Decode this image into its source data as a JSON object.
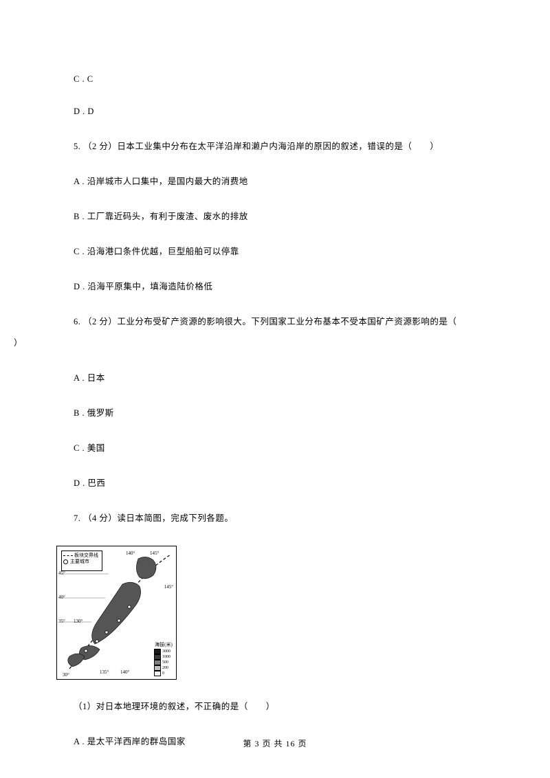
{
  "lines": {
    "cc": "C . C",
    "dd": "D . D",
    "q5": "5.  （2 分）日本工业集中分布在太平洋沿岸和濑户内海沿岸的原因的叙述，错误的是（　　）",
    "q5a": "A . 沿岸城市人口集中，是国内最大的消费地",
    "q5b": "B . 工厂靠近码头，有利于废渣、废水的排放",
    "q5c": "C . 沿海港口条件优越，巨型船舶可以停靠",
    "q5d": "D . 沿海平原集中，填海造陆价格低",
    "q6": "6.   （2 分）工业分布受矿产资源的影响很大。下列国家工业分布基本不受本国矿产资源影响的是（",
    "q6_close": "）",
    "q6a": "A . 日本",
    "q6b": "B . 俄罗斯",
    "q6c": "C . 美国",
    "q6d": "D . 巴西",
    "q7": "7.  （4 分）读日本简图，完成下列各题。",
    "q7_1": "（1）对日本地理环境的叙述，不正确的是（　　）",
    "q7_1a": "A . 是太平洋西岸的群岛国家"
  },
  "map": {
    "legend1": "板块交界线",
    "legend2": "主要城市",
    "lat45": "45°",
    "lat40": "40°",
    "lat35": "35°",
    "lat30": "30°",
    "lon130": "130°",
    "lon135": "135°",
    "lon140": "140°",
    "lon145a": "145°",
    "lon145b": "145°",
    "depth_title": "海拔(米)",
    "depths": [
      {
        "c": "#1a1a1a",
        "v": "3000"
      },
      {
        "c": "#3a3a3a",
        "v": "1000"
      },
      {
        "c": "#808080",
        "v": "500"
      },
      {
        "c": "#c0c0c0",
        "v": "200"
      },
      {
        "c": "#f0f0f0",
        "v": "0"
      }
    ]
  },
  "footer": "第 3 页 共 16 页"
}
